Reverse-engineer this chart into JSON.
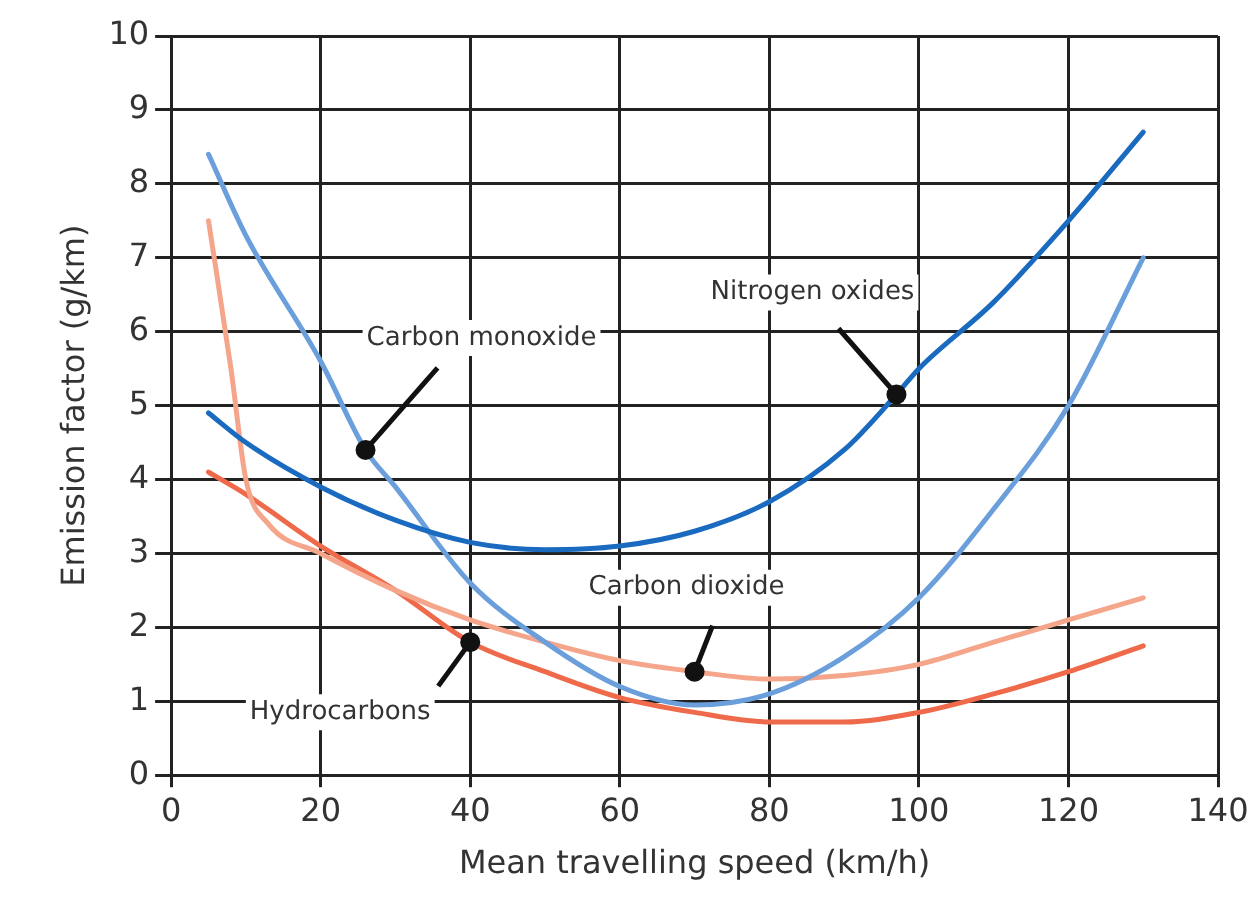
{
  "chart_data": {
    "type": "line",
    "xlabel": "Mean travelling speed (km/h)",
    "ylabel": "Emission factor (g/km)",
    "xlim": [
      0,
      140
    ],
    "xticks": [
      0,
      20,
      40,
      60,
      80,
      100,
      120,
      140
    ],
    "ylim": [
      0,
      10
    ],
    "yticks": [
      0,
      1,
      2,
      3,
      4,
      5,
      6,
      7,
      8,
      9,
      10
    ],
    "grid": true,
    "marker": "none",
    "line_style": "solid",
    "series": [
      {
        "name": "Nitrogen oxides",
        "color": "#1a6bc0",
        "x": [
          5,
          10,
          20,
          30,
          40,
          50,
          60,
          70,
          80,
          90,
          97,
          100,
          110,
          120,
          130
        ],
        "values": [
          4.9,
          4.5,
          3.9,
          3.45,
          3.15,
          3.05,
          3.1,
          3.3,
          3.7,
          4.4,
          5.15,
          5.5,
          6.4,
          7.5,
          8.7
        ]
      },
      {
        "name": "Carbon monoxide",
        "color": "#6a9fdc",
        "x": [
          5,
          10,
          20,
          26,
          30,
          40,
          50,
          60,
          70,
          80,
          90,
          100,
          110,
          120,
          130
        ],
        "values": [
          8.4,
          7.3,
          5.6,
          4.4,
          3.9,
          2.6,
          1.8,
          1.2,
          0.95,
          1.1,
          1.6,
          2.4,
          3.6,
          5.0,
          7.0
        ]
      },
      {
        "name": "Carbon dioxide",
        "color": "#f5a58a",
        "x": [
          5,
          8,
          10,
          13,
          20,
          30,
          40,
          50,
          60,
          70,
          80,
          90,
          100,
          110,
          120,
          130
        ],
        "values": [
          7.5,
          5.5,
          4.0,
          3.4,
          3.0,
          2.5,
          2.1,
          1.8,
          1.55,
          1.4,
          1.3,
          1.35,
          1.5,
          1.8,
          2.1,
          2.4
        ]
      },
      {
        "name": "Hydrocarbons",
        "color": "#ee6a4a",
        "x": [
          5,
          10,
          20,
          30,
          40,
          50,
          60,
          70,
          80,
          90,
          100,
          110,
          120,
          130
        ],
        "values": [
          4.1,
          3.8,
          3.1,
          2.5,
          1.8,
          1.4,
          1.05,
          0.85,
          0.72,
          0.72,
          0.85,
          1.1,
          1.4,
          1.75
        ]
      }
    ]
  }
}
